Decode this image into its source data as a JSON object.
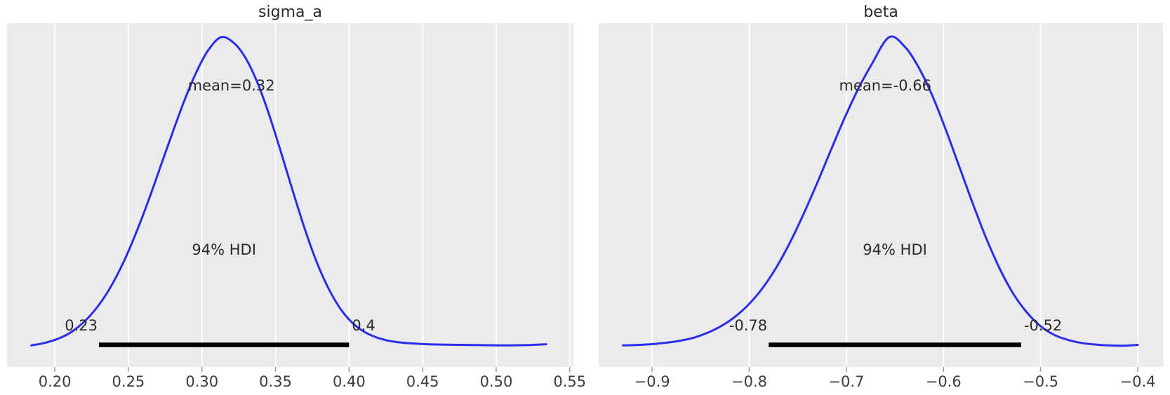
{
  "figure": {
    "background": "#ffffff",
    "panel_background": "#ebebeb",
    "grid_color": "#ffffff",
    "curve_color": "#2a2eec",
    "hdi_bar_color": "#000000",
    "text_color": "#2b2b2b",
    "tick_label_color": "#3c3c3c",
    "tick_mark_color": "#9a9a9a"
  },
  "chart_data": [
    {
      "type": "line",
      "kind": "posterior-kde",
      "title": "sigma_a",
      "xlabel": "",
      "ylabel": "",
      "grid": true,
      "legend": false,
      "mean": 0.32,
      "mean_label": "mean=0.32",
      "hdi_prob_label": "94% HDI",
      "hdi": [
        0.23,
        0.4
      ],
      "hdi_lower_label": "0.23",
      "hdi_upper_label": "0.4",
      "xlim": [
        0.1675,
        0.5525
      ],
      "ylim": [
        0,
        1.06
      ],
      "xticks": [
        0.2,
        0.25,
        0.3,
        0.35,
        0.4,
        0.45,
        0.5,
        0.55
      ],
      "xtick_labels": [
        "0.20",
        "0.25",
        "0.30",
        "0.35",
        "0.40",
        "0.45",
        "0.50",
        "0.55"
      ],
      "x": [
        0.184,
        0.192,
        0.2,
        0.208,
        0.216,
        0.224,
        0.232,
        0.24,
        0.248,
        0.256,
        0.264,
        0.272,
        0.28,
        0.288,
        0.296,
        0.304,
        0.313,
        0.322,
        0.33,
        0.338,
        0.346,
        0.354,
        0.362,
        0.37,
        0.378,
        0.386,
        0.394,
        0.402,
        0.41,
        0.418,
        0.426,
        0.436,
        0.448,
        0.46,
        0.474,
        0.49,
        0.506,
        0.52,
        0.534
      ],
      "density": [
        0.006,
        0.013,
        0.024,
        0.04,
        0.066,
        0.102,
        0.15,
        0.212,
        0.288,
        0.378,
        0.478,
        0.585,
        0.692,
        0.795,
        0.885,
        0.956,
        1.0,
        0.98,
        0.93,
        0.85,
        0.745,
        0.625,
        0.5,
        0.38,
        0.275,
        0.19,
        0.125,
        0.08,
        0.051,
        0.033,
        0.022,
        0.015,
        0.011,
        0.009,
        0.008,
        0.007,
        0.006,
        0.007,
        0.01
      ]
    },
    {
      "type": "line",
      "kind": "posterior-kde",
      "title": "beta",
      "xlabel": "",
      "ylabel": "",
      "grid": true,
      "legend": false,
      "mean": -0.66,
      "mean_label": "mean=-0.66",
      "hdi_prob_label": "94% HDI",
      "hdi": [
        -0.78,
        -0.52
      ],
      "hdi_lower_label": "-0.78",
      "hdi_upper_label": "-0.52",
      "xlim": [
        -0.955,
        -0.374
      ],
      "ylim": [
        0,
        1.06
      ],
      "xticks": [
        -0.9,
        -0.8,
        -0.7,
        -0.6,
        -0.5,
        -0.4
      ],
      "xtick_labels": [
        "−0.9",
        "−0.8",
        "−0.7",
        "−0.6",
        "−0.5",
        "−0.4"
      ],
      "x": [
        -0.93,
        -0.918,
        -0.906,
        -0.894,
        -0.882,
        -0.87,
        -0.856,
        -0.842,
        -0.828,
        -0.814,
        -0.8,
        -0.786,
        -0.772,
        -0.758,
        -0.744,
        -0.73,
        -0.716,
        -0.702,
        -0.688,
        -0.674,
        -0.656,
        -0.64,
        -0.626,
        -0.612,
        -0.598,
        -0.584,
        -0.57,
        -0.556,
        -0.542,
        -0.528,
        -0.514,
        -0.5,
        -0.486,
        -0.472,
        -0.458,
        -0.444,
        -0.43,
        -0.415,
        -0.4
      ],
      "density": [
        0.006,
        0.007,
        0.009,
        0.012,
        0.016,
        0.022,
        0.032,
        0.048,
        0.07,
        0.1,
        0.14,
        0.192,
        0.258,
        0.338,
        0.43,
        0.53,
        0.635,
        0.738,
        0.832,
        0.912,
        1.0,
        0.97,
        0.905,
        0.815,
        0.705,
        0.585,
        0.465,
        0.352,
        0.253,
        0.172,
        0.112,
        0.068,
        0.04,
        0.024,
        0.014,
        0.009,
        0.006,
        0.005,
        0.008
      ]
    }
  ]
}
